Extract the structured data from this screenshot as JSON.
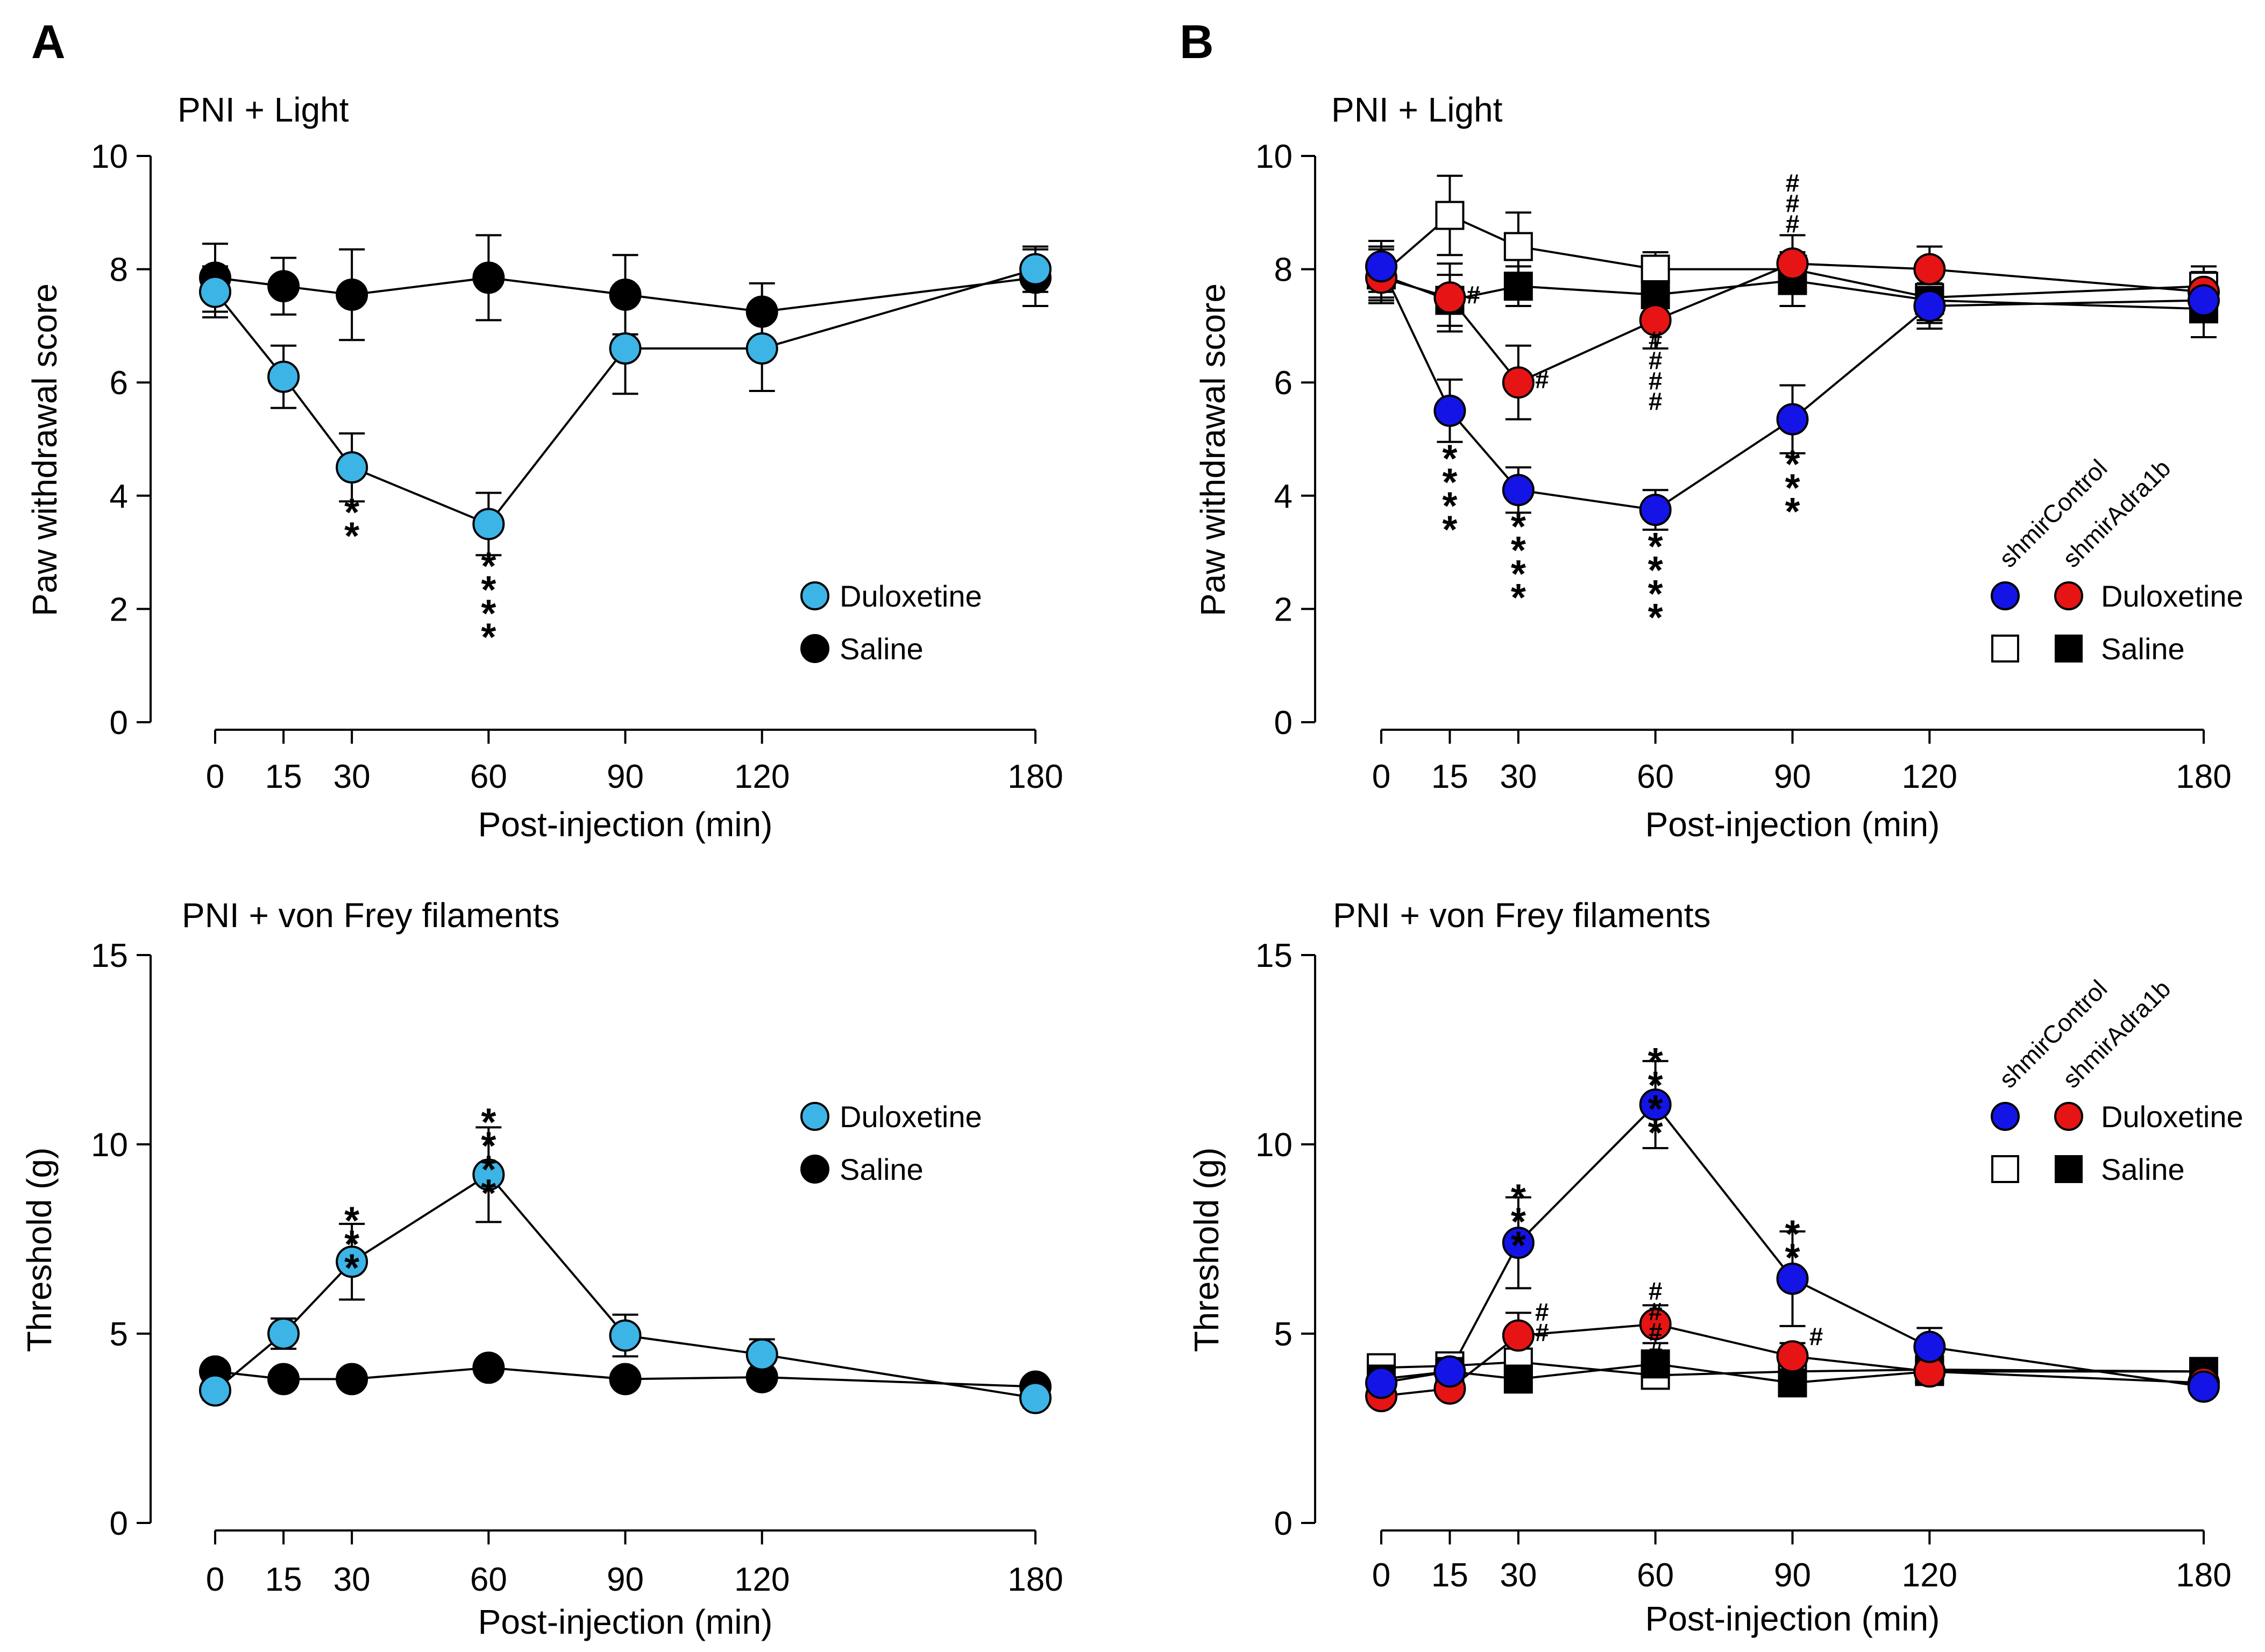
{
  "panel_labels": {
    "a": "A",
    "b": "B"
  },
  "colors": {
    "duloxetine_cyan": "#3cb4e6",
    "shmir_control_blue": "#1414e6",
    "shmir_adra1b_red": "#e61414",
    "saline": "#000000",
    "open": "#ffffff"
  },
  "chart_data": [
    {
      "id": "a_top",
      "type": "line",
      "title": "PNI + Light",
      "xlabel": "Post-injection (min)",
      "ylabel": "Paw withdrawal score",
      "xlim": [
        0,
        180
      ],
      "ylim": [
        0,
        10
      ],
      "x": [
        0,
        15,
        30,
        60,
        90,
        120,
        180
      ],
      "xticks": [
        "0",
        "15",
        "30",
        "60",
        "90",
        "120",
        "180"
      ],
      "yticks": [
        "0",
        "2",
        "4",
        "6",
        "8",
        "10"
      ],
      "series": [
        {
          "name": "Saline",
          "marker": "circle",
          "fill": "#000000",
          "values": [
            7.85,
            7.7,
            7.55,
            7.85,
            7.55,
            7.25,
            7.85
          ],
          "errors": [
            0.6,
            0.5,
            0.8,
            0.75,
            0.7,
            0.5,
            0.5
          ]
        },
        {
          "name": "Duloxetine",
          "marker": "circle",
          "fill": "#3cb4e6",
          "values": [
            7.6,
            6.1,
            4.5,
            3.5,
            6.6,
            6.6,
            8.0
          ],
          "errors": [
            0.45,
            0.55,
            0.6,
            0.55,
            0.8,
            0.75,
            0.4
          ]
        }
      ],
      "annotations": [
        {
          "x": 30,
          "y": 3.85,
          "text": "**"
        },
        {
          "x": 60,
          "y": 2.9,
          "text": "****"
        }
      ],
      "legend": {
        "position": "bottom-right",
        "entries": [
          {
            "label": "Duloxetine",
            "fill": "#3cb4e6",
            "marker": "circle"
          },
          {
            "label": "Saline",
            "fill": "#000000",
            "marker": "circle"
          }
        ]
      }
    },
    {
      "id": "b_top",
      "type": "line",
      "title": "PNI + Light",
      "xlabel": "Post-injection (min)",
      "ylabel": "Paw withdrawal score",
      "xlim": [
        0,
        180
      ],
      "ylim": [
        0,
        10
      ],
      "x": [
        0,
        15,
        30,
        60,
        90,
        120,
        180
      ],
      "xticks": [
        "0",
        "15",
        "30",
        "60",
        "90",
        "120",
        "180"
      ],
      "yticks": [
        "0",
        "2",
        "4",
        "6",
        "8",
        "10"
      ],
      "series": [
        {
          "name": "shmirControl Saline",
          "marker": "square",
          "fill": "#ffffff",
          "values": [
            7.9,
            8.95,
            8.4,
            8.0,
            8.0,
            7.5,
            7.7
          ],
          "errors": [
            0.5,
            0.7,
            0.6,
            0.3,
            0.3,
            0.4,
            0.35
          ]
        },
        {
          "name": "shmirAdra1b Saline",
          "marker": "square",
          "fill": "#000000",
          "values": [
            7.9,
            7.45,
            7.7,
            7.55,
            7.8,
            7.45,
            7.3
          ],
          "errors": [
            0.45,
            0.45,
            0.35,
            0.3,
            0.45,
            0.4,
            0.5
          ]
        },
        {
          "name": "shmirAdra1b Duloxetine",
          "marker": "circle",
          "fill": "#e61414",
          "values": [
            7.85,
            7.5,
            6.0,
            7.1,
            8.1,
            8.0,
            7.6
          ],
          "errors": [
            0.35,
            0.6,
            0.65,
            0.5,
            0.5,
            0.4,
            0.35
          ]
        },
        {
          "name": "shmirControl Duloxetine",
          "marker": "circle",
          "fill": "#1414e6",
          "values": [
            8.05,
            5.5,
            4.1,
            3.75,
            5.35,
            7.35,
            7.45
          ],
          "errors": [
            0.45,
            0.55,
            0.4,
            0.35,
            0.6,
            0.4,
            0.35
          ]
        }
      ],
      "annotations": [
        {
          "x": 15,
          "y": 4.8,
          "text": "****"
        },
        {
          "x": 30,
          "y": 3.6,
          "text": "****"
        },
        {
          "x": 60,
          "y": 3.25,
          "text": "****"
        },
        {
          "x": 90,
          "y": 4.7,
          "text": "***"
        },
        {
          "x": 15,
          "y": 7.4,
          "text": "#",
          "side": "right"
        },
        {
          "x": 30,
          "y": 5.9,
          "text": "#",
          "side": "right"
        },
        {
          "x": 60,
          "y": 6.6,
          "text": "####"
        },
        {
          "x": 90,
          "y": 8.65,
          "text": "###",
          "stack": "up"
        }
      ],
      "legend": {
        "position": "bottom-right",
        "group_labels": [
          "shmirControl",
          "shmirAdra1b"
        ],
        "rows": [
          {
            "label": "Duloxetine",
            "left": {
              "marker": "circle",
              "fill": "#1414e6"
            },
            "right": {
              "marker": "circle",
              "fill": "#e61414"
            }
          },
          {
            "label": "Saline",
            "left": {
              "marker": "square",
              "fill": "#ffffff"
            },
            "right": {
              "marker": "square",
              "fill": "#000000"
            }
          }
        ]
      }
    },
    {
      "id": "a_bottom",
      "type": "line",
      "title": "PNI + von Frey filaments",
      "xlabel": "Post-injection (min)",
      "ylabel": "Threshold (g)",
      "xlim": [
        0,
        180
      ],
      "ylim": [
        0,
        15
      ],
      "x": [
        0,
        15,
        30,
        60,
        90,
        120,
        180
      ],
      "xticks": [
        "0",
        "15",
        "30",
        "60",
        "90",
        "120",
        "180"
      ],
      "yticks": [
        "0",
        "5",
        "10",
        "15"
      ],
      "series": [
        {
          "name": "Saline",
          "marker": "circle",
          "fill": "#000000",
          "values": [
            4.0,
            3.8,
            3.8,
            4.1,
            3.8,
            3.85,
            3.6
          ],
          "errors": [
            0.15,
            0.15,
            0.15,
            0.15,
            0.15,
            0.15,
            0.15
          ]
        },
        {
          "name": "Duloxetine",
          "marker": "circle",
          "fill": "#3cb4e6",
          "values": [
            3.5,
            5.0,
            6.9,
            9.2,
            4.95,
            4.45,
            3.3
          ],
          "errors": [
            0.25,
            0.4,
            1.0,
            1.25,
            0.55,
            0.4,
            0.25
          ]
        }
      ],
      "annotations": [
        {
          "x": 30,
          "y": 8.2,
          "text": "***"
        },
        {
          "x": 60,
          "y": 10.8,
          "text": "****"
        }
      ],
      "legend": {
        "position": "top-right",
        "entries": [
          {
            "label": "Duloxetine",
            "fill": "#3cb4e6",
            "marker": "circle"
          },
          {
            "label": "Saline",
            "fill": "#000000",
            "marker": "circle"
          }
        ]
      }
    },
    {
      "id": "b_bottom",
      "type": "line",
      "title": "PNI + von Frey filaments",
      "xlabel": "Post-injection (min)",
      "ylabel": "Threshold (g)",
      "xlim": [
        0,
        180
      ],
      "ylim": [
        0,
        15
      ],
      "x": [
        0,
        15,
        30,
        60,
        90,
        120,
        180
      ],
      "xticks": [
        "0",
        "15",
        "30",
        "60",
        "90",
        "120",
        "180"
      ],
      "yticks": [
        "0",
        "5",
        "10",
        "15"
      ],
      "series": [
        {
          "name": "shmirControl Saline",
          "marker": "square",
          "fill": "#ffffff",
          "values": [
            4.1,
            4.15,
            4.25,
            3.9,
            4.0,
            4.05,
            4.0
          ],
          "errors": [
            0.15,
            0.15,
            0.15,
            0.15,
            0.15,
            0.15,
            0.15
          ]
        },
        {
          "name": "shmirAdra1b Saline",
          "marker": "square",
          "fill": "#000000",
          "values": [
            3.8,
            4.0,
            3.8,
            4.2,
            3.7,
            4.0,
            4.0
          ],
          "errors": [
            0.15,
            0.15,
            0.15,
            0.15,
            0.15,
            0.15,
            0.15
          ]
        },
        {
          "name": "shmirAdra1b Duloxetine",
          "marker": "circle",
          "fill": "#e61414",
          "values": [
            3.35,
            3.55,
            4.95,
            5.25,
            4.4,
            4.0,
            3.7
          ],
          "errors": [
            0.2,
            0.2,
            0.6,
            0.5,
            0.35,
            0.2,
            0.2
          ]
        },
        {
          "name": "shmirControl Duloxetine",
          "marker": "circle",
          "fill": "#1414e6",
          "values": [
            3.7,
            4.0,
            7.4,
            11.05,
            6.45,
            4.65,
            3.6
          ],
          "errors": [
            0.2,
            0.25,
            1.2,
            1.15,
            1.25,
            0.5,
            0.2
          ]
        }
      ],
      "annotations": [
        {
          "x": 30,
          "y": 8.8,
          "text": "***"
        },
        {
          "x": 60,
          "y": 12.4,
          "text": "****"
        },
        {
          "x": 90,
          "y": 7.85,
          "text": "**"
        },
        {
          "x": 30,
          "y": 5.35,
          "text": "##",
          "side": "right"
        },
        {
          "x": 60,
          "y": 5.9,
          "text": "####"
        },
        {
          "x": 90,
          "y": 4.7,
          "text": "#",
          "side": "right"
        }
      ],
      "legend": {
        "position": "top-right",
        "group_labels": [
          "shmirControl",
          "shmirAdra1b"
        ],
        "rows": [
          {
            "label": "Duloxetine",
            "left": {
              "marker": "circle",
              "fill": "#1414e6"
            },
            "right": {
              "marker": "circle",
              "fill": "#e61414"
            }
          },
          {
            "label": "Saline",
            "left": {
              "marker": "square",
              "fill": "#ffffff"
            },
            "right": {
              "marker": "square",
              "fill": "#000000"
            }
          }
        ]
      }
    }
  ]
}
